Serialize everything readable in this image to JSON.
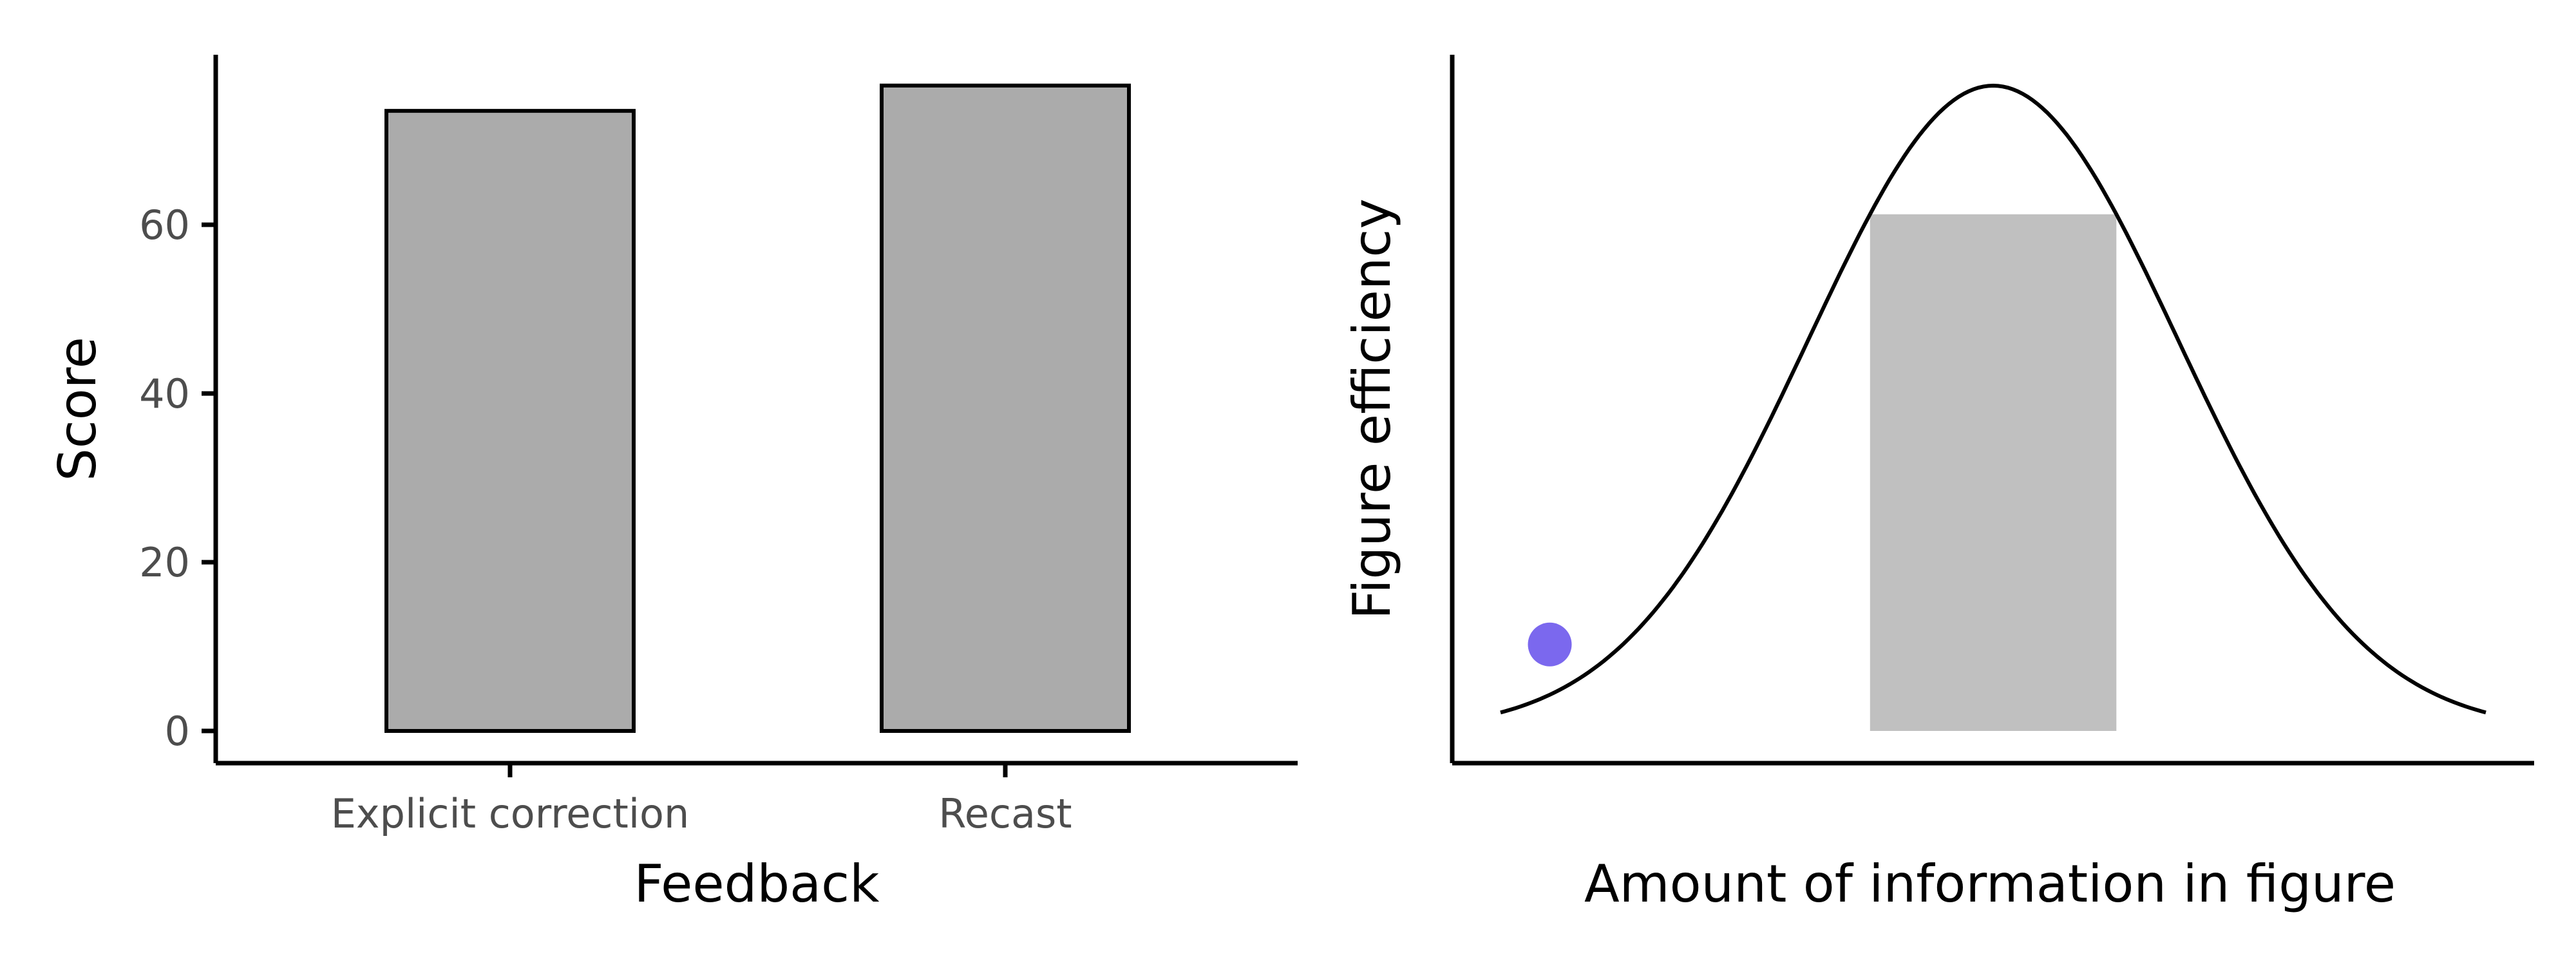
{
  "chart_data": [
    {
      "type": "bar",
      "categories": [
        "Explicit correction",
        "Recast"
      ],
      "values": [
        73.5,
        76.5
      ],
      "xlabel": "Feedback",
      "ylabel": "Score",
      "ylim": [
        0,
        80
      ],
      "yticks": [
        0,
        20,
        40,
        60
      ],
      "bar_color": "#ababab",
      "grid": false
    },
    {
      "type": "line",
      "xlabel": "Amount of information in figure",
      "ylabel": "Figure efficiency",
      "x": [
        -4.0,
        -3.5,
        -3.0,
        -2.5,
        -2.0,
        -1.5,
        -1.0,
        -0.5,
        0.0,
        0.5,
        1.0,
        1.5,
        2.0,
        2.5,
        3.0,
        3.5,
        4.0
      ],
      "y": [
        0.045,
        0.09,
        0.165,
        0.28,
        0.43,
        0.6,
        0.76,
        0.9,
        1.0,
        0.9,
        0.76,
        0.6,
        0.43,
        0.28,
        0.165,
        0.09,
        0.045
      ],
      "highlight_range": [
        -1.0,
        1.0
      ],
      "highlight_color": "#c0c0c0",
      "point": {
        "x": -3.6,
        "y": 0.134,
        "color": "#7b68ee"
      },
      "xlim": [
        -4.0,
        4.0
      ],
      "ylim": [
        0,
        1.0
      ],
      "grid": false
    }
  ]
}
